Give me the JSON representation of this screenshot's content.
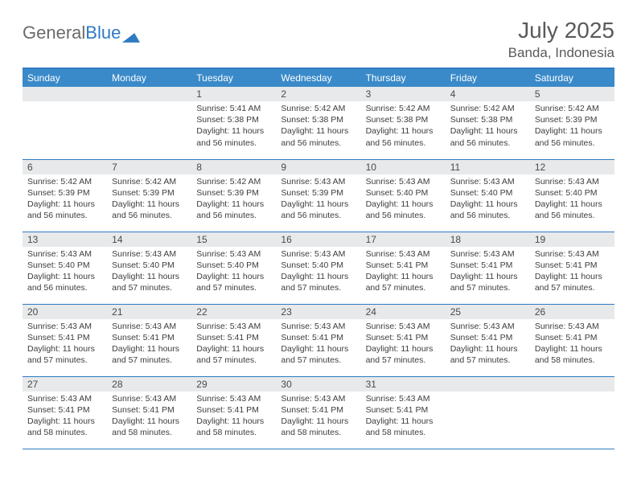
{
  "brand": {
    "part1": "General",
    "part2": "Blue"
  },
  "title": "July 2025",
  "location": "Banda, Indonesia",
  "colors": {
    "header_bg": "#3a8ac2",
    "border": "#2f7ac2",
    "daynum_bg": "#e7e9ea",
    "text": "#3d3d3d",
    "title_text": "#5a5a5a"
  },
  "dayHeaders": [
    "Sunday",
    "Monday",
    "Tuesday",
    "Wednesday",
    "Thursday",
    "Friday",
    "Saturday"
  ],
  "weeks": [
    [
      null,
      null,
      {
        "n": "1",
        "sr": "5:41 AM",
        "ss": "5:38 PM",
        "dl": "11 hours and 56 minutes."
      },
      {
        "n": "2",
        "sr": "5:42 AM",
        "ss": "5:38 PM",
        "dl": "11 hours and 56 minutes."
      },
      {
        "n": "3",
        "sr": "5:42 AM",
        "ss": "5:38 PM",
        "dl": "11 hours and 56 minutes."
      },
      {
        "n": "4",
        "sr": "5:42 AM",
        "ss": "5:38 PM",
        "dl": "11 hours and 56 minutes."
      },
      {
        "n": "5",
        "sr": "5:42 AM",
        "ss": "5:39 PM",
        "dl": "11 hours and 56 minutes."
      }
    ],
    [
      {
        "n": "6",
        "sr": "5:42 AM",
        "ss": "5:39 PM",
        "dl": "11 hours and 56 minutes."
      },
      {
        "n": "7",
        "sr": "5:42 AM",
        "ss": "5:39 PM",
        "dl": "11 hours and 56 minutes."
      },
      {
        "n": "8",
        "sr": "5:42 AM",
        "ss": "5:39 PM",
        "dl": "11 hours and 56 minutes."
      },
      {
        "n": "9",
        "sr": "5:43 AM",
        "ss": "5:39 PM",
        "dl": "11 hours and 56 minutes."
      },
      {
        "n": "10",
        "sr": "5:43 AM",
        "ss": "5:40 PM",
        "dl": "11 hours and 56 minutes."
      },
      {
        "n": "11",
        "sr": "5:43 AM",
        "ss": "5:40 PM",
        "dl": "11 hours and 56 minutes."
      },
      {
        "n": "12",
        "sr": "5:43 AM",
        "ss": "5:40 PM",
        "dl": "11 hours and 56 minutes."
      }
    ],
    [
      {
        "n": "13",
        "sr": "5:43 AM",
        "ss": "5:40 PM",
        "dl": "11 hours and 56 minutes."
      },
      {
        "n": "14",
        "sr": "5:43 AM",
        "ss": "5:40 PM",
        "dl": "11 hours and 57 minutes."
      },
      {
        "n": "15",
        "sr": "5:43 AM",
        "ss": "5:40 PM",
        "dl": "11 hours and 57 minutes."
      },
      {
        "n": "16",
        "sr": "5:43 AM",
        "ss": "5:40 PM",
        "dl": "11 hours and 57 minutes."
      },
      {
        "n": "17",
        "sr": "5:43 AM",
        "ss": "5:41 PM",
        "dl": "11 hours and 57 minutes."
      },
      {
        "n": "18",
        "sr": "5:43 AM",
        "ss": "5:41 PM",
        "dl": "11 hours and 57 minutes."
      },
      {
        "n": "19",
        "sr": "5:43 AM",
        "ss": "5:41 PM",
        "dl": "11 hours and 57 minutes."
      }
    ],
    [
      {
        "n": "20",
        "sr": "5:43 AM",
        "ss": "5:41 PM",
        "dl": "11 hours and 57 minutes."
      },
      {
        "n": "21",
        "sr": "5:43 AM",
        "ss": "5:41 PM",
        "dl": "11 hours and 57 minutes."
      },
      {
        "n": "22",
        "sr": "5:43 AM",
        "ss": "5:41 PM",
        "dl": "11 hours and 57 minutes."
      },
      {
        "n": "23",
        "sr": "5:43 AM",
        "ss": "5:41 PM",
        "dl": "11 hours and 57 minutes."
      },
      {
        "n": "24",
        "sr": "5:43 AM",
        "ss": "5:41 PM",
        "dl": "11 hours and 57 minutes."
      },
      {
        "n": "25",
        "sr": "5:43 AM",
        "ss": "5:41 PM",
        "dl": "11 hours and 57 minutes."
      },
      {
        "n": "26",
        "sr": "5:43 AM",
        "ss": "5:41 PM",
        "dl": "11 hours and 58 minutes."
      }
    ],
    [
      {
        "n": "27",
        "sr": "5:43 AM",
        "ss": "5:41 PM",
        "dl": "11 hours and 58 minutes."
      },
      {
        "n": "28",
        "sr": "5:43 AM",
        "ss": "5:41 PM",
        "dl": "11 hours and 58 minutes."
      },
      {
        "n": "29",
        "sr": "5:43 AM",
        "ss": "5:41 PM",
        "dl": "11 hours and 58 minutes."
      },
      {
        "n": "30",
        "sr": "5:43 AM",
        "ss": "5:41 PM",
        "dl": "11 hours and 58 minutes."
      },
      {
        "n": "31",
        "sr": "5:43 AM",
        "ss": "5:41 PM",
        "dl": "11 hours and 58 minutes."
      },
      null,
      null
    ]
  ],
  "labels": {
    "sunrise": "Sunrise:",
    "sunset": "Sunset:",
    "daylight": "Daylight:"
  }
}
